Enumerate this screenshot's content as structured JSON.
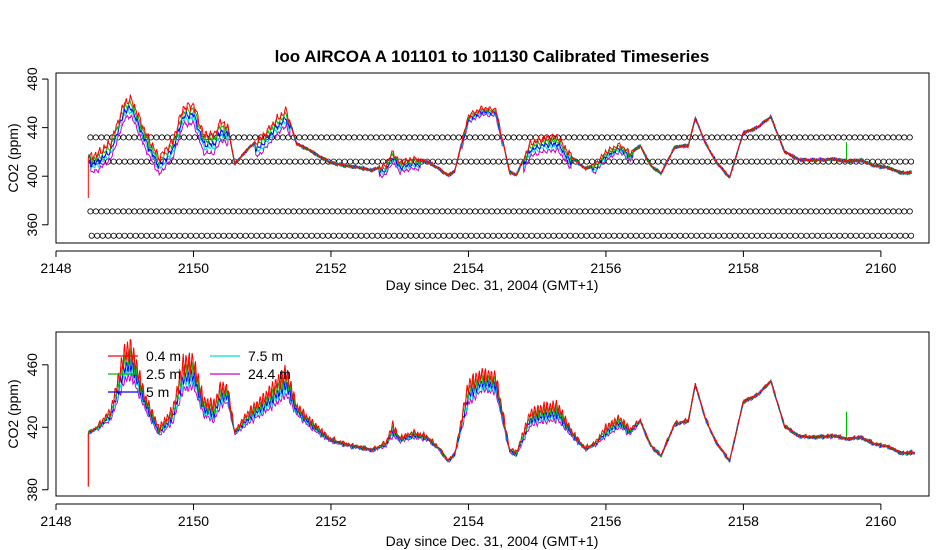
{
  "chart_data": [
    {
      "type": "line",
      "title": "loo   AIRCOA  A    101101  to  101130   Calibrated Timeseries",
      "xlabel": "Day since Dec. 31, 2004 (GMT+1)",
      "ylabel": "CO2 (ppm)",
      "xlim": [
        2148,
        2160.7
      ],
      "ylim": [
        345,
        485
      ],
      "xticks": [
        2148,
        2150,
        2152,
        2154,
        2156,
        2158,
        2160
      ],
      "yticks": [
        360,
        400,
        440,
        480
      ],
      "series_colors": [
        "#ff0000",
        "#00bb00",
        "#0000ff",
        "#00dddd",
        "#cc00cc"
      ],
      "reference": {
        "name": "0.4 m",
        "x": [
          2148.45,
          2148.6,
          2148.8,
          2149.0,
          2149.1,
          2149.3,
          2149.5,
          2149.7,
          2149.85,
          2150.0,
          2150.15,
          2150.3,
          2150.4,
          2150.5,
          2150.6,
          2150.8,
          2151.0,
          2151.2,
          2151.35,
          2151.5,
          2151.7,
          2152.0,
          2152.3,
          2152.6,
          2152.8,
          2152.9,
          2153.0,
          2153.2,
          2153.4,
          2153.6,
          2153.7,
          2153.8,
          2154.0,
          2154.2,
          2154.4,
          2154.6,
          2154.7,
          2154.9,
          2155.1,
          2155.3,
          2155.5,
          2155.7,
          2155.85,
          2156.0,
          2156.2,
          2156.35,
          2156.5,
          2156.65,
          2156.8,
          2157.0,
          2157.2,
          2157.3,
          2157.45,
          2157.6,
          2157.8,
          2158.0,
          2158.2,
          2158.4,
          2158.6,
          2158.8,
          2159.0,
          2159.3,
          2159.5,
          2159.7,
          2159.9,
          2160.1,
          2160.3,
          2160.5
        ],
        "y": [
          416,
          418,
          428,
          461,
          463,
          436,
          415,
          429,
          456,
          459,
          434,
          434,
          445,
          441,
          410,
          423,
          432,
          446,
          454,
          427,
          421,
          411,
          408,
          405,
          409,
          420,
          411,
          414,
          412,
          405,
          401,
          404,
          450,
          456,
          455,
          403,
          401,
          427,
          431,
          432,
          416,
          406,
          410,
          420,
          426,
          419,
          425,
          409,
          402,
          424,
          425,
          448,
          427,
          412,
          399,
          436,
          440,
          449,
          420,
          414,
          413,
          414,
          412,
          413,
          409,
          407,
          403,
          403
        ]
      },
      "reference_spread": [
        {
          "from": 2148.5,
          "to": 2149.9,
          "amp": 18
        },
        {
          "from": 2149.9,
          "to": 2150.5,
          "amp": 20
        },
        {
          "from": 2150.9,
          "to": 2151.4,
          "amp": 16
        },
        {
          "from": 2152.7,
          "to": 2153.3,
          "amp": 10
        },
        {
          "from": 2153.9,
          "to": 2154.5,
          "amp": 7
        },
        {
          "from": 2154.8,
          "to": 2155.5,
          "amp": 14
        },
        {
          "from": 2155.8,
          "to": 2156.4,
          "amp": 8
        }
      ],
      "reference_dots": {
        "levels": [
          432,
          412,
          371,
          351
        ],
        "x_from": 2148.5,
        "x_to": 2160.45,
        "step": 0.08
      }
    },
    {
      "type": "line",
      "xlabel": "Day since Dec. 31, 2004 (GMT+1)",
      "ylabel": "CO2 (ppm)",
      "xlim": [
        2148,
        2160.7
      ],
      "ylim": [
        376,
        481
      ],
      "xticks": [
        2148,
        2150,
        2152,
        2154,
        2156,
        2158,
        2160
      ],
      "yticks": [
        380,
        420,
        460
      ],
      "legend_position": "top-left",
      "series": [
        {
          "name": "0.4 m",
          "color": "#ff0000",
          "peak_factor": 1.0,
          "phase": 0.0
        },
        {
          "name": "2.5 m",
          "color": "#00bb00",
          "peak_factor": 0.82,
          "phase": 1.1
        },
        {
          "name": "5 m",
          "color": "#0000ff",
          "peak_factor": 0.62,
          "phase": 2.3
        },
        {
          "name": "7.5 m",
          "color": "#00dddd",
          "peak_factor": 0.48,
          "phase": 3.4
        },
        {
          "name": "24.4 m",
          "color": "#cc00cc",
          "peak_factor": 0.3,
          "phase": 4.6
        }
      ],
      "baseline": {
        "x": [
          2148.45,
          2148.6,
          2148.8,
          2149.0,
          2149.1,
          2149.3,
          2149.5,
          2149.7,
          2149.85,
          2150.0,
          2150.15,
          2150.3,
          2150.4,
          2150.5,
          2150.6,
          2150.8,
          2151.0,
          2151.2,
          2151.35,
          2151.5,
          2151.7,
          2152.0,
          2152.3,
          2152.6,
          2152.8,
          2152.9,
          2153.0,
          2153.2,
          2153.4,
          2153.6,
          2153.7,
          2153.8,
          2154.0,
          2154.2,
          2154.4,
          2154.6,
          2154.7,
          2154.9,
          2155.1,
          2155.3,
          2155.5,
          2155.7,
          2155.85,
          2156.0,
          2156.2,
          2156.35,
          2156.5,
          2156.65,
          2156.8,
          2157.0,
          2157.2,
          2157.3,
          2157.45,
          2157.6,
          2157.8,
          2158.0,
          2158.2,
          2158.4,
          2158.6,
          2158.8,
          2159.0,
          2159.3,
          2159.5,
          2159.7,
          2159.9,
          2160.1,
          2160.3,
          2160.5
        ],
        "y": [
          416,
          418,
          423,
          443,
          445,
          428,
          413,
          420,
          437,
          440,
          424,
          420,
          430,
          432,
          415,
          420,
          425,
          430,
          435,
          426,
          418,
          410,
          407,
          405,
          407,
          412,
          410,
          412,
          411,
          404,
          398,
          402,
          430,
          440,
          438,
          403,
          401,
          418,
          420,
          421,
          413,
          405,
          408,
          412,
          418,
          414,
          423,
          408,
          401,
          421,
          423,
          447,
          424,
          410,
          398,
          436,
          440,
          449,
          420,
          414,
          413,
          414,
          412,
          413,
          409,
          407,
          403,
          403
        ]
      },
      "excess": {
        "x": [
          2148.45,
          2148.6,
          2148.8,
          2149.0,
          2149.1,
          2149.3,
          2149.5,
          2149.7,
          2149.85,
          2150.0,
          2150.15,
          2150.3,
          2150.4,
          2150.5,
          2150.6,
          2150.8,
          2151.0,
          2151.2,
          2151.35,
          2151.5,
          2151.7,
          2152.0,
          2152.3,
          2152.6,
          2152.8,
          2152.9,
          2153.0,
          2153.2,
          2153.4,
          2153.6,
          2153.7,
          2153.8,
          2154.0,
          2154.2,
          2154.4,
          2154.6,
          2154.7,
          2154.9,
          2155.1,
          2155.3,
          2155.5,
          2155.7,
          2155.85,
          2156.0,
          2156.2,
          2156.35,
          2156.5,
          2156.65,
          2156.8,
          2157.0,
          2157.2,
          2157.3,
          2157.45,
          2157.6,
          2157.8,
          2158.0,
          2158.2,
          2158.4,
          2158.6,
          2158.8,
          2159.0,
          2159.3,
          2159.5,
          2159.7,
          2159.9,
          2160.1,
          2160.3,
          2160.5
        ],
        "y": [
          0,
          3,
          10,
          32,
          32,
          14,
          8,
          14,
          30,
          28,
          16,
          18,
          20,
          16,
          3,
          12,
          16,
          22,
          26,
          10,
          8,
          3,
          2,
          1,
          4,
          12,
          4,
          6,
          4,
          2,
          1,
          1,
          22,
          18,
          18,
          4,
          4,
          14,
          16,
          16,
          6,
          2,
          3,
          10,
          10,
          6,
          2,
          1,
          1,
          2,
          2,
          1,
          2,
          1,
          1,
          1,
          1,
          1,
          1,
          1,
          1,
          1,
          1,
          1,
          1,
          1,
          1,
          1
        ]
      },
      "annotations": [
        {
          "type": "spike",
          "series": "0.4 m",
          "x": 2148.47,
          "from": 416,
          "to": 382
        },
        {
          "type": "spike",
          "series": "2.5 m",
          "x": 2159.5,
          "from": 414,
          "to": 430
        }
      ]
    }
  ]
}
